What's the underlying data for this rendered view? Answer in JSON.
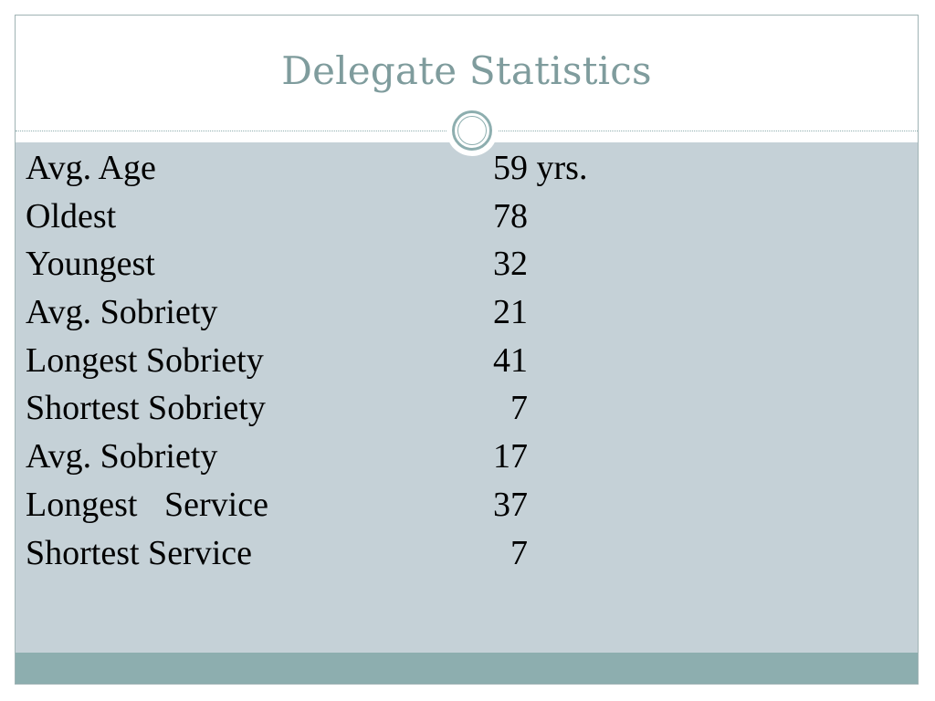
{
  "slide": {
    "title": "Delegate Statistics",
    "stats": [
      {
        "label": "Avg. Age",
        "value": "59 yrs."
      },
      {
        "label": "Oldest",
        "value": "78"
      },
      {
        "label": "Youngest",
        "value": "32"
      },
      {
        "label": "Avg. Sobriety",
        "value": "21"
      },
      {
        "label": "Longest Sobriety",
        "value": "41"
      },
      {
        "label": "Shortest Sobriety",
        "value": "  7"
      },
      {
        "label": "Avg. Sobriety",
        "value": "17"
      },
      {
        "label": "Longest\tService",
        "value": "37"
      },
      {
        "label": "Shortest Service",
        "value": "  7"
      }
    ]
  },
  "colors": {
    "title_text": "#7f9c9d",
    "content_background": "#c5d1d7",
    "accent": "#8daeaf",
    "border": "#9fb3b4"
  }
}
